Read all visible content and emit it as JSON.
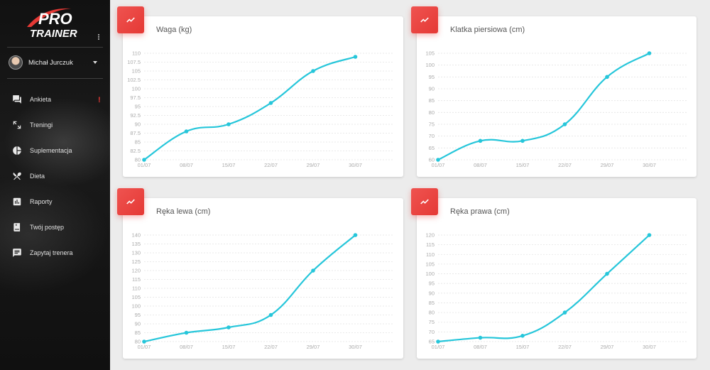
{
  "app": {
    "logo_top": "PRO",
    "logo_bottom": "TRAINER"
  },
  "user": {
    "name": "Michał Jurczuk"
  },
  "nav": [
    {
      "label": "Ankieta",
      "icon": "forum-icon",
      "alert": "!"
    },
    {
      "label": "Treningi",
      "icon": "expand-arrows-icon"
    },
    {
      "label": "Suplementacja",
      "icon": "pie-chart-icon"
    },
    {
      "label": "Dieta",
      "icon": "utensils-icon"
    },
    {
      "label": "Raporty",
      "icon": "bar-chart-icon"
    },
    {
      "label": "Twój postęp",
      "icon": "progress-book-icon"
    },
    {
      "label": "Zapytaj trenera",
      "icon": "chat-icon"
    }
  ],
  "colors": {
    "accent": "#e53935",
    "line": "#26c6da"
  },
  "chart_data": [
    {
      "type": "line",
      "title": "Waga (kg)",
      "x": [
        "01/07",
        "08/07",
        "15/07",
        "22/07",
        "29/07",
        "30/07"
      ],
      "y_ticks": [
        "80",
        "82.5",
        "85",
        "87.5",
        "90",
        "92.5",
        "95",
        "97.5",
        "100",
        "102.5",
        "105",
        "107.5",
        "110"
      ],
      "ylim": [
        80,
        110
      ],
      "series": [
        {
          "values": [
            80,
            88,
            90,
            96,
            105,
            109
          ]
        }
      ]
    },
    {
      "type": "line",
      "title": "Klatka piersiowa (cm)",
      "x": [
        "01/07",
        "08/07",
        "15/07",
        "22/07",
        "29/07",
        "30/07"
      ],
      "y_ticks": [
        "60",
        "65",
        "70",
        "75",
        "80",
        "85",
        "90",
        "95",
        "100",
        "105"
      ],
      "ylim": [
        60,
        105
      ],
      "series": [
        {
          "values": [
            60,
            68,
            68,
            75,
            95,
            105
          ]
        }
      ]
    },
    {
      "type": "line",
      "title": "Ręka lewa (cm)",
      "x": [
        "01/07",
        "08/07",
        "15/07",
        "22/07",
        "29/07",
        "30/07"
      ],
      "y_ticks": [
        "80",
        "85",
        "90",
        "95",
        "100",
        "105",
        "110",
        "115",
        "120",
        "125",
        "130",
        "135",
        "140"
      ],
      "ylim": [
        80,
        140
      ],
      "series": [
        {
          "values": [
            80,
            85,
            88,
            95,
            120,
            140
          ]
        }
      ]
    },
    {
      "type": "line",
      "title": "Ręka prawa (cm)",
      "x": [
        "01/07",
        "08/07",
        "15/07",
        "22/07",
        "29/07",
        "30/07"
      ],
      "y_ticks": [
        "65",
        "70",
        "75",
        "80",
        "85",
        "90",
        "95",
        "100",
        "105",
        "110",
        "115",
        "120"
      ],
      "ylim": [
        65,
        120
      ],
      "series": [
        {
          "values": [
            65,
            67,
            68,
            80,
            100,
            120
          ]
        }
      ]
    }
  ]
}
